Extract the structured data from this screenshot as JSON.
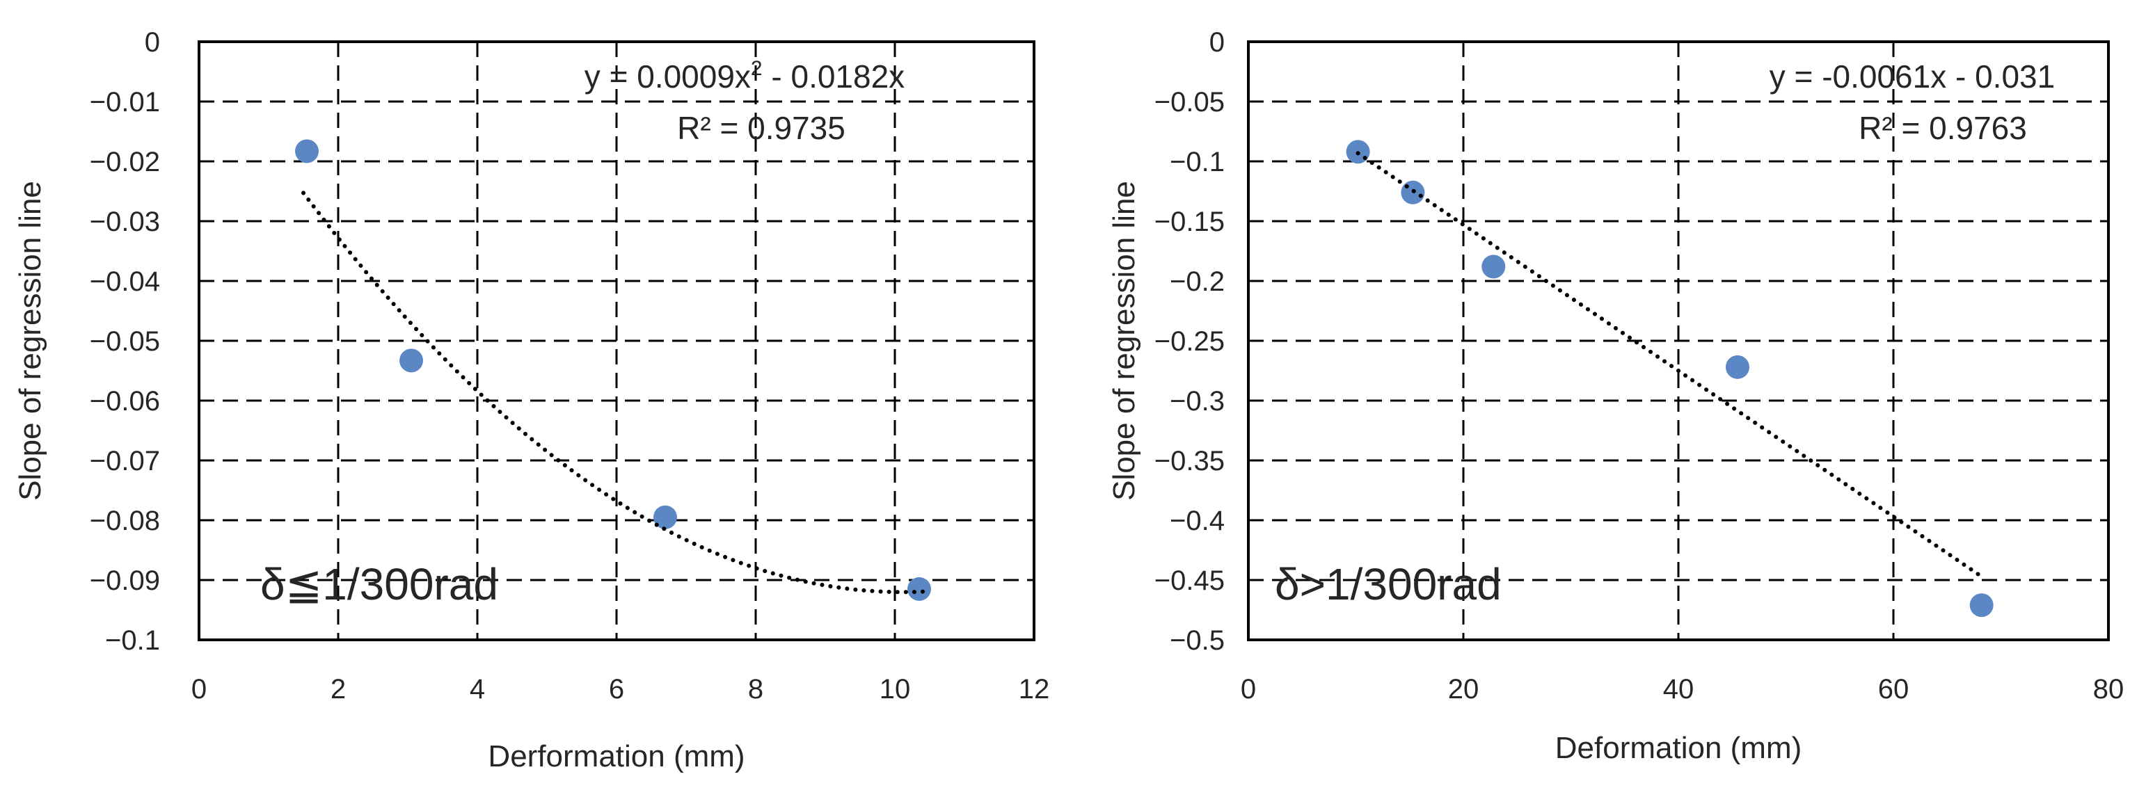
{
  "colors": {
    "marker": "#5b87c5",
    "axis": "#000000",
    "grid": "#000000",
    "trendline": "#000000",
    "text": "#262626",
    "background": "#ffffff"
  },
  "chart_data": [
    {
      "type": "scatter",
      "xlabel": "Derformation (mm)",
      "ylabel": "Slope of regression line",
      "xlim": [
        0,
        12
      ],
      "ylim": [
        -0.1,
        0
      ],
      "xticks": [
        0,
        2,
        4,
        6,
        8,
        10,
        12
      ],
      "yticks": [
        0,
        -0.01,
        -0.02,
        -0.03,
        -0.04,
        -0.05,
        -0.06,
        -0.07,
        -0.08,
        -0.09,
        -0.1
      ],
      "xtick_labels": [
        "0",
        "2",
        "4",
        "6",
        "8",
        "10",
        "12"
      ],
      "ytick_labels": [
        "0",
        "−0.01",
        "−0.02",
        "−0.03",
        "−0.04",
        "−0.05",
        "−0.06",
        "−0.07",
        "−0.08",
        "−0.09",
        "−0.1"
      ],
      "grid": "dashed",
      "series": [
        {
          "name": "data",
          "x": [
            1.55,
            3.05,
            6.7,
            10.35
          ],
          "y": [
            -0.0183,
            -0.0533,
            -0.0795,
            -0.0915
          ]
        }
      ],
      "trendline": {
        "type": "polynomial",
        "coefficients": [
          0.0009,
          -0.0182,
          0
        ],
        "x_range": [
          1.5,
          10.4
        ],
        "equation_prefix": "y = 0.0009x",
        "equation_sup": "2",
        "equation_suffix": " - 0.0182x",
        "r2_label": "R² = 0.9735"
      },
      "annotation": "δ≦1/300rad"
    },
    {
      "type": "scatter",
      "xlabel": "Deformation (mm)",
      "ylabel": "Slope of regression line",
      "xlim": [
        0,
        80
      ],
      "ylim": [
        -0.5,
        0
      ],
      "xticks": [
        0,
        20,
        40,
        60,
        80
      ],
      "yticks": [
        0,
        -0.05,
        -0.1,
        -0.15,
        -0.2,
        -0.25,
        -0.3,
        -0.35,
        -0.4,
        -0.45,
        -0.5
      ],
      "xtick_labels": [
        "0",
        "20",
        "40",
        "60",
        "80"
      ],
      "ytick_labels": [
        "0",
        "−0.05",
        "−0.1",
        "−0.15",
        "−0.2",
        "−0.25",
        "−0.3",
        "−0.35",
        "−0.4",
        "−0.45",
        "−0.5"
      ],
      "grid": "dashed",
      "series": [
        {
          "name": "data",
          "x": [
            10.2,
            15.3,
            22.8,
            45.5,
            68.2
          ],
          "y": [
            -0.092,
            -0.126,
            -0.188,
            -0.272,
            -0.471
          ]
        }
      ],
      "trendline": {
        "type": "linear",
        "coefficients": [
          -0.0061,
          -0.031
        ],
        "x_range": [
          10.2,
          68.2
        ],
        "equation_prefix": "y = -0.0061x - 0.031",
        "equation_sup": "",
        "equation_suffix": "",
        "r2_label": "R² = 0.9763"
      },
      "annotation": "δ>1/300rad"
    }
  ]
}
